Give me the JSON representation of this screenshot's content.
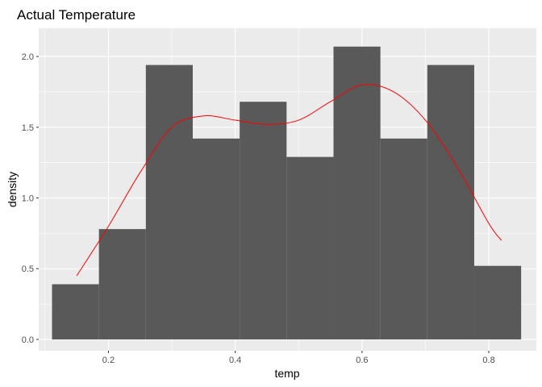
{
  "chart_data": {
    "type": "bar",
    "title": "Actual Temperature",
    "xlabel": "temp",
    "ylabel": "density",
    "xlim": [
      0.09,
      0.875
    ],
    "ylim": [
      -0.08,
      2.2
    ],
    "x_ticks": [
      0.2,
      0.4,
      0.6,
      0.8
    ],
    "x_tick_labels": [
      "0.2",
      "0.4",
      "0.6",
      "0.8"
    ],
    "y_ticks": [
      0.0,
      0.5,
      1.0,
      1.5,
      2.0
    ],
    "y_tick_labels": [
      "0.0",
      "0.5",
      "1.0",
      "1.5",
      "2.0"
    ],
    "grid": true,
    "bins": [
      {
        "x0": 0.111,
        "x1": 0.185,
        "density": 0.39
      },
      {
        "x0": 0.185,
        "x1": 0.259,
        "density": 0.78
      },
      {
        "x0": 0.259,
        "x1": 0.333,
        "density": 1.94
      },
      {
        "x0": 0.333,
        "x1": 0.407,
        "density": 1.42
      },
      {
        "x0": 0.407,
        "x1": 0.481,
        "density": 1.68
      },
      {
        "x0": 0.481,
        "x1": 0.555,
        "density": 1.29
      },
      {
        "x0": 0.555,
        "x1": 0.629,
        "density": 2.07
      },
      {
        "x0": 0.629,
        "x1": 0.703,
        "density": 1.42
      },
      {
        "x0": 0.703,
        "x1": 0.777,
        "density": 1.94
      },
      {
        "x0": 0.777,
        "x1": 0.851,
        "density": 0.52
      }
    ],
    "density_curve": {
      "x": [
        0.15,
        0.2,
        0.25,
        0.3,
        0.35,
        0.4,
        0.45,
        0.5,
        0.55,
        0.6,
        0.65,
        0.7,
        0.75,
        0.8,
        0.82
      ],
      "y": [
        0.45,
        0.8,
        1.18,
        1.5,
        1.58,
        1.55,
        1.52,
        1.55,
        1.68,
        1.8,
        1.75,
        1.55,
        1.22,
        0.82,
        0.7
      ]
    },
    "colors": {
      "bar": "#595959",
      "panel": "#ebebeb",
      "grid_major": "#ffffff",
      "curve": "#ff0000"
    }
  }
}
